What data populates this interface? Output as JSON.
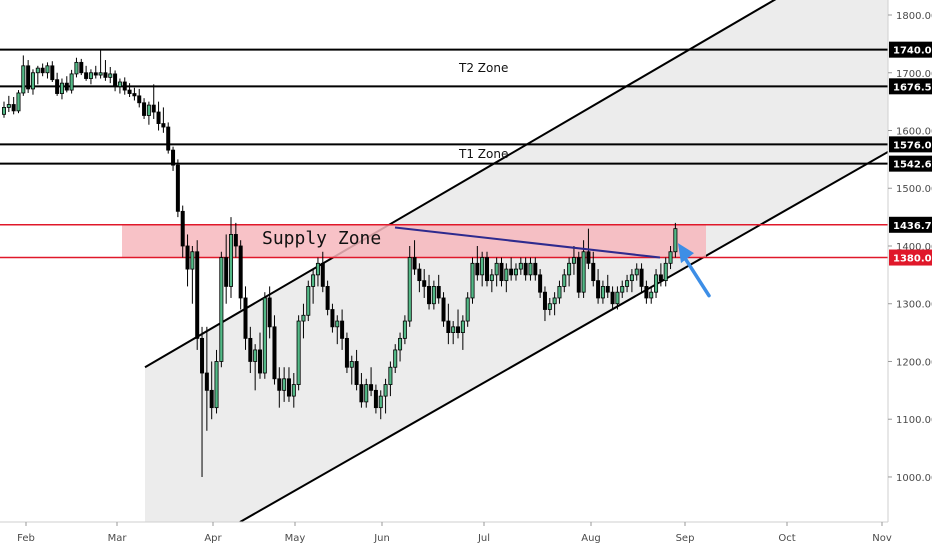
{
  "chart_data": {
    "type": "candlestick",
    "y_axis": {
      "range": [
        922,
        1826
      ],
      "ticks": [
        1000,
        1100,
        1200,
        1300,
        1400,
        1500,
        1600,
        1700,
        1800
      ],
      "tick_labels": [
        "1000.00",
        "1100.00",
        "1200.00",
        "1300.00",
        "1400.00",
        "1500.00",
        "1600.00",
        "1700.00",
        "1800.00"
      ],
      "side": "right",
      "price_labels": [
        {
          "label": "1740.00",
          "value": 1740,
          "color": "#000000"
        },
        {
          "label": "1676.50",
          "value": 1676.5,
          "color": "#000000"
        },
        {
          "label": "1576.00",
          "value": 1576,
          "color": "#000000"
        },
        {
          "label": "1542.60",
          "value": 1542.6,
          "color": "#000000"
        },
        {
          "label": "1436.70",
          "value": 1436.7,
          "color": "#000000"
        },
        {
          "label": "1380.00",
          "value": 1380,
          "color": "#e0182a"
        }
      ]
    },
    "x_axis": {
      "labels": [
        "Feb",
        "Mar",
        "Apr",
        "May",
        "Jun",
        "Jul",
        "Aug",
        "Sep",
        "Oct",
        "Nov"
      ]
    },
    "colors": {
      "up": "#53b987",
      "down": "#000000",
      "wick": "#000000",
      "trendline": "#000000",
      "neckline": "#2e2a8e",
      "supply_fill": "#f7b7bd",
      "supply_line": "#e0182a",
      "channel_fill": "#ececec",
      "arrow": "#3d8ee6"
    },
    "zones": [
      {
        "name": "T2 Zone",
        "top": 1740,
        "bottom": 1676.5,
        "style": "black-lines"
      },
      {
        "name": "T1 Zone",
        "top": 1576,
        "bottom": 1542.6,
        "style": "black-lines"
      },
      {
        "name": "Supply Zone",
        "top": 1436.7,
        "bottom": 1380,
        "style": "red-band"
      }
    ],
    "candles": [
      [
        1628,
        1650,
        1622,
        1640
      ],
      [
        1640,
        1660,
        1632,
        1645
      ],
      [
        1645,
        1658,
        1628,
        1634
      ],
      [
        1634,
        1670,
        1630,
        1665
      ],
      [
        1665,
        1730,
        1660,
        1712
      ],
      [
        1712,
        1722,
        1665,
        1672
      ],
      [
        1672,
        1706,
        1662,
        1700
      ],
      [
        1700,
        1712,
        1680,
        1708
      ],
      [
        1708,
        1716,
        1694,
        1700
      ],
      [
        1700,
        1718,
        1690,
        1712
      ],
      [
        1712,
        1720,
        1684,
        1688
      ],
      [
        1688,
        1700,
        1660,
        1664
      ],
      [
        1664,
        1690,
        1654,
        1682
      ],
      [
        1682,
        1694,
        1666,
        1670
      ],
      [
        1670,
        1705,
        1664,
        1698
      ],
      [
        1698,
        1726,
        1692,
        1718
      ],
      [
        1718,
        1724,
        1696,
        1700
      ],
      [
        1700,
        1712,
        1686,
        1690
      ],
      [
        1690,
        1706,
        1680,
        1700
      ],
      [
        1700,
        1712,
        1690,
        1696
      ],
      [
        1696,
        1740,
        1690,
        1700
      ],
      [
        1700,
        1722,
        1686,
        1692
      ],
      [
        1692,
        1710,
        1682,
        1698
      ],
      [
        1698,
        1704,
        1668,
        1676
      ],
      [
        1676,
        1690,
        1664,
        1684
      ],
      [
        1684,
        1692,
        1662,
        1670
      ],
      [
        1670,
        1682,
        1658,
        1664
      ],
      [
        1664,
        1674,
        1652,
        1660
      ],
      [
        1660,
        1672,
        1640,
        1648
      ],
      [
        1648,
        1656,
        1620,
        1626
      ],
      [
        1626,
        1650,
        1610,
        1644
      ],
      [
        1644,
        1680,
        1620,
        1632
      ],
      [
        1632,
        1650,
        1600,
        1612
      ],
      [
        1612,
        1640,
        1596,
        1606
      ],
      [
        1606,
        1614,
        1560,
        1566
      ],
      [
        1566,
        1572,
        1530,
        1540
      ],
      [
        1540,
        1550,
        1450,
        1460
      ],
      [
        1460,
        1470,
        1380,
        1400
      ],
      [
        1400,
        1420,
        1330,
        1360
      ],
      [
        1360,
        1400,
        1300,
        1390
      ],
      [
        1390,
        1410,
        1220,
        1240
      ],
      [
        1240,
        1260,
        1000,
        1180
      ],
      [
        1180,
        1260,
        1080,
        1150
      ],
      [
        1150,
        1200,
        1100,
        1120
      ],
      [
        1120,
        1220,
        1110,
        1200
      ],
      [
        1200,
        1390,
        1190,
        1380
      ],
      [
        1380,
        1420,
        1300,
        1330
      ],
      [
        1330,
        1450,
        1310,
        1420
      ],
      [
        1420,
        1440,
        1380,
        1400
      ],
      [
        1400,
        1410,
        1290,
        1310
      ],
      [
        1310,
        1330,
        1220,
        1240
      ],
      [
        1240,
        1260,
        1180,
        1200
      ],
      [
        1200,
        1230,
        1150,
        1220
      ],
      [
        1220,
        1250,
        1170,
        1180
      ],
      [
        1180,
        1320,
        1170,
        1310
      ],
      [
        1310,
        1330,
        1240,
        1260
      ],
      [
        1260,
        1280,
        1160,
        1170
      ],
      [
        1170,
        1190,
        1120,
        1150
      ],
      [
        1150,
        1190,
        1130,
        1170
      ],
      [
        1170,
        1190,
        1130,
        1140
      ],
      [
        1140,
        1180,
        1120,
        1160
      ],
      [
        1160,
        1280,
        1150,
        1270
      ],
      [
        1270,
        1300,
        1240,
        1280
      ],
      [
        1280,
        1340,
        1270,
        1330
      ],
      [
        1330,
        1360,
        1300,
        1350
      ],
      [
        1350,
        1380,
        1330,
        1370
      ],
      [
        1370,
        1390,
        1320,
        1330
      ],
      [
        1330,
        1340,
        1280,
        1290
      ],
      [
        1290,
        1300,
        1250,
        1260
      ],
      [
        1260,
        1280,
        1230,
        1270
      ],
      [
        1270,
        1290,
        1220,
        1240
      ],
      [
        1240,
        1250,
        1180,
        1190
      ],
      [
        1190,
        1210,
        1160,
        1200
      ],
      [
        1200,
        1220,
        1150,
        1160
      ],
      [
        1160,
        1180,
        1120,
        1130
      ],
      [
        1130,
        1170,
        1120,
        1160
      ],
      [
        1160,
        1190,
        1140,
        1150
      ],
      [
        1150,
        1160,
        1110,
        1120
      ],
      [
        1120,
        1150,
        1100,
        1140
      ],
      [
        1140,
        1170,
        1110,
        1160
      ],
      [
        1160,
        1200,
        1140,
        1190
      ],
      [
        1190,
        1230,
        1180,
        1220
      ],
      [
        1220,
        1250,
        1200,
        1240
      ],
      [
        1240,
        1280,
        1230,
        1270
      ],
      [
        1270,
        1400,
        1260,
        1380
      ],
      [
        1380,
        1410,
        1350,
        1360
      ],
      [
        1360,
        1370,
        1320,
        1340
      ],
      [
        1340,
        1360,
        1310,
        1330
      ],
      [
        1330,
        1350,
        1290,
        1300
      ],
      [
        1300,
        1340,
        1290,
        1330
      ],
      [
        1330,
        1350,
        1300,
        1310
      ],
      [
        1310,
        1320,
        1260,
        1270
      ],
      [
        1270,
        1300,
        1230,
        1250
      ],
      [
        1250,
        1270,
        1230,
        1260
      ],
      [
        1260,
        1290,
        1240,
        1250
      ],
      [
        1250,
        1280,
        1220,
        1270
      ],
      [
        1270,
        1320,
        1260,
        1310
      ],
      [
        1310,
        1380,
        1300,
        1370
      ],
      [
        1370,
        1400,
        1340,
        1350
      ],
      [
        1350,
        1390,
        1330,
        1380
      ],
      [
        1380,
        1390,
        1330,
        1340
      ],
      [
        1340,
        1360,
        1320,
        1350
      ],
      [
        1350,
        1380,
        1330,
        1370
      ],
      [
        1370,
        1380,
        1330,
        1340
      ],
      [
        1340,
        1370,
        1320,
        1360
      ],
      [
        1360,
        1380,
        1340,
        1350
      ],
      [
        1350,
        1370,
        1340,
        1360
      ],
      [
        1360,
        1380,
        1350,
        1370
      ],
      [
        1370,
        1380,
        1340,
        1350
      ],
      [
        1350,
        1380,
        1340,
        1370
      ],
      [
        1370,
        1380,
        1340,
        1350
      ],
      [
        1350,
        1360,
        1310,
        1320
      ],
      [
        1320,
        1330,
        1270,
        1290
      ],
      [
        1290,
        1310,
        1280,
        1300
      ],
      [
        1300,
        1320,
        1280,
        1310
      ],
      [
        1310,
        1340,
        1300,
        1330
      ],
      [
        1330,
        1360,
        1320,
        1350
      ],
      [
        1350,
        1380,
        1330,
        1370
      ],
      [
        1370,
        1400,
        1350,
        1380
      ],
      [
        1380,
        1390,
        1310,
        1320
      ],
      [
        1320,
        1410,
        1310,
        1390
      ],
      [
        1390,
        1430,
        1360,
        1370
      ],
      [
        1370,
        1390,
        1330,
        1340
      ],
      [
        1340,
        1360,
        1300,
        1310
      ],
      [
        1310,
        1340,
        1300,
        1330
      ],
      [
        1330,
        1350,
        1310,
        1320
      ],
      [
        1320,
        1330,
        1290,
        1300
      ],
      [
        1300,
        1330,
        1290,
        1320
      ],
      [
        1320,
        1340,
        1310,
        1330
      ],
      [
        1330,
        1350,
        1320,
        1340
      ],
      [
        1340,
        1360,
        1320,
        1350
      ],
      [
        1350,
        1370,
        1340,
        1360
      ],
      [
        1360,
        1370,
        1320,
        1330
      ],
      [
        1330,
        1340,
        1300,
        1310
      ],
      [
        1310,
        1330,
        1300,
        1320
      ],
      [
        1320,
        1360,
        1310,
        1350
      ],
      [
        1350,
        1370,
        1330,
        1340
      ],
      [
        1340,
        1380,
        1330,
        1370
      ],
      [
        1370,
        1400,
        1360,
        1390
      ],
      [
        1390,
        1440,
        1380,
        1430
      ]
    ],
    "candle_x_start": 4,
    "candle_x_step": 4.83,
    "channel": {
      "upper": [
        [
          145,
          1190
        ],
        [
          800,
          1852
        ]
      ],
      "lower": [
        [
          240,
          922
        ],
        [
          889,
          1564
        ]
      ]
    },
    "neckline": [
      [
        395,
        1432
      ],
      [
        660,
        1380
      ]
    ],
    "arrow": {
      "from": [
        709,
        1314
      ],
      "to": [
        678,
        1405
      ]
    }
  }
}
